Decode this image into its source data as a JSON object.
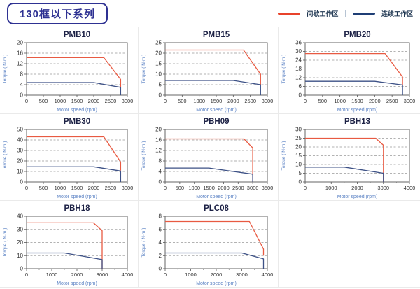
{
  "header": {
    "title": "130框以下系列",
    "legend": {
      "items": [
        {
          "label": "间歇工作区",
          "color": "#e8432b"
        },
        {
          "label": "连续工作区",
          "color": "#1f3e75"
        }
      ],
      "separator": "|",
      "position": "top-right"
    }
  },
  "style": {
    "intermittent_line_color": "#e85a42",
    "continuous_line_color": "#3d5186",
    "chart_title_color": "#1c2145",
    "axis_label_color": "#5b82c4",
    "tick_label_color": "#333333",
    "gridline_color": "#999999",
    "plot_border_color": "#666666"
  },
  "chart_data": [
    {
      "type": "line",
      "title": "PMB10",
      "xlabel": "Motor speed (rpm)",
      "ylabel": "Torque ( N·m )",
      "xlim": [
        0,
        3000
      ],
      "ylim": [
        0,
        20
      ],
      "xticks": [
        0,
        500,
        1000,
        1500,
        2000,
        2500,
        3000
      ],
      "yticks": [
        0,
        4,
        8,
        12,
        16,
        20
      ],
      "x_minor": null,
      "grid": "dashed-horizontal",
      "series": [
        {
          "name": "间歇工作区",
          "color": "#e85a42",
          "points": [
            [
              0,
              14.3
            ],
            [
              2300,
              14.3
            ],
            [
              2800,
              6
            ],
            [
              2800,
              3
            ]
          ]
        },
        {
          "name": "连续工作区",
          "color": "#3d5186",
          "points": [
            [
              0,
              4.8
            ],
            [
              2000,
              4.8
            ],
            [
              2800,
              3
            ],
            [
              2800,
              0
            ]
          ]
        }
      ]
    },
    {
      "type": "line",
      "title": "PMB15",
      "xlabel": "Motor speed (rpm)",
      "ylabel": "Torque ( N·m )",
      "xlim": [
        0,
        3000
      ],
      "ylim": [
        0,
        25
      ],
      "xticks": [
        0,
        500,
        1000,
        1500,
        2000,
        2500,
        3000
      ],
      "yticks": [
        0,
        5,
        10,
        15,
        20,
        25
      ],
      "x_minor": null,
      "grid": "dashed-horizontal",
      "series": [
        {
          "name": "间歇工作区",
          "color": "#e85a42",
          "points": [
            [
              0,
              21.5
            ],
            [
              2300,
              21.5
            ],
            [
              2800,
              10
            ],
            [
              2800,
              5
            ]
          ]
        },
        {
          "name": "连续工作区",
          "color": "#3d5186",
          "points": [
            [
              0,
              7
            ],
            [
              2000,
              7
            ],
            [
              2800,
              5
            ],
            [
              2800,
              0
            ]
          ]
        }
      ]
    },
    {
      "type": "line",
      "title": "PMB20",
      "xlabel": "Motor speed (rpm)",
      "ylabel": "Torque ( N·m )",
      "xlim": [
        0,
        3000
      ],
      "ylim": [
        0,
        36
      ],
      "xticks": [
        0,
        500,
        1000,
        1500,
        2000,
        2500,
        3000
      ],
      "yticks": [
        0,
        6,
        12,
        18,
        24,
        30,
        36
      ],
      "x_minor": null,
      "grid": "dashed-horizontal",
      "series": [
        {
          "name": "间歇工作区",
          "color": "#e85a42",
          "points": [
            [
              0,
              28.5
            ],
            [
              2300,
              28.5
            ],
            [
              2800,
              12.5
            ],
            [
              2800,
              7
            ]
          ]
        },
        {
          "name": "连续工作区",
          "color": "#3d5186",
          "points": [
            [
              0,
              9.5
            ],
            [
              2000,
              9.5
            ],
            [
              2800,
              7
            ],
            [
              2800,
              0
            ]
          ]
        }
      ]
    },
    {
      "type": "line",
      "title": "PMB30",
      "xlabel": "Motor speed (rpm)",
      "ylabel": "Torque ( N·m )",
      "xlim": [
        0,
        3000
      ],
      "ylim": [
        0,
        50
      ],
      "xticks": [
        0,
        500,
        1000,
        1500,
        2000,
        2500,
        3000
      ],
      "yticks": [
        0,
        10,
        20,
        30,
        40,
        50
      ],
      "x_minor": null,
      "grid": "dashed-horizontal",
      "series": [
        {
          "name": "间歇工作区",
          "color": "#e85a42",
          "points": [
            [
              0,
              43
            ],
            [
              2300,
              43
            ],
            [
              2800,
              19
            ],
            [
              2800,
              11
            ]
          ]
        },
        {
          "name": "连续工作区",
          "color": "#3d5186",
          "points": [
            [
              0,
              14.5
            ],
            [
              2000,
              14.5
            ],
            [
              2800,
              10.5
            ],
            [
              2800,
              0
            ]
          ]
        }
      ]
    },
    {
      "type": "line",
      "title": "PBH09",
      "xlabel": "Motor speed (rpm)",
      "ylabel": "Torque ( N·m )",
      "xlim": [
        0,
        3500
      ],
      "ylim": [
        0,
        20
      ],
      "xticks": [
        0,
        500,
        1000,
        1500,
        2000,
        2500,
        3000,
        3500
      ],
      "yticks": [
        0,
        4,
        8,
        12,
        16,
        20
      ],
      "x_minor": null,
      "grid": "dashed-horizontal",
      "series": [
        {
          "name": "间歇工作区",
          "color": "#e85a42",
          "points": [
            [
              0,
              16.4
            ],
            [
              2700,
              16.4
            ],
            [
              3000,
              13
            ],
            [
              3000,
              0
            ]
          ]
        },
        {
          "name": "连续工作区",
          "color": "#3d5186",
          "points": [
            [
              0,
              5.3
            ],
            [
              1500,
              5.3
            ],
            [
              3000,
              3
            ],
            [
              3000,
              0
            ]
          ]
        }
      ]
    },
    {
      "type": "line",
      "title": "PBH13",
      "xlabel": "Motor speed (rpm)",
      "ylabel": "Torque ( N·m )",
      "xlim": [
        0,
        4000
      ],
      "ylim": [
        0,
        30
      ],
      "xticks": [
        0,
        1000,
        2000,
        3000,
        4000
      ],
      "yticks": [
        0,
        5,
        10,
        15,
        20,
        25,
        30
      ],
      "x_minor": 500,
      "grid": "dashed-horizontal",
      "series": [
        {
          "name": "间歇工作区",
          "color": "#e85a42",
          "points": [
            [
              0,
              25
            ],
            [
              2700,
              25
            ],
            [
              3000,
              21
            ],
            [
              3000,
              0
            ]
          ]
        },
        {
          "name": "连续工作区",
          "color": "#3d5186",
          "points": [
            [
              0,
              8.5
            ],
            [
              1500,
              8.5
            ],
            [
              3000,
              5
            ],
            [
              3000,
              0
            ]
          ]
        }
      ]
    },
    {
      "type": "line",
      "title": "PBH18",
      "xlabel": "Motor speed (rpm)",
      "ylabel": "Torque ( N·m )",
      "xlim": [
        0,
        4000
      ],
      "ylim": [
        0,
        40
      ],
      "xticks": [
        0,
        1000,
        2000,
        3000,
        4000
      ],
      "yticks": [
        0,
        10,
        20,
        30,
        40
      ],
      "x_minor": 500,
      "grid": "dashed-horizontal",
      "series": [
        {
          "name": "间歇工作区",
          "color": "#e85a42",
          "points": [
            [
              0,
              35
            ],
            [
              2650,
              35
            ],
            [
              3000,
              29
            ],
            [
              3000,
              0
            ]
          ]
        },
        {
          "name": "连续工作区",
          "color": "#3d5186",
          "points": [
            [
              0,
              12
            ],
            [
              1500,
              12
            ],
            [
              3000,
              7
            ],
            [
              3000,
              0
            ]
          ]
        }
      ]
    },
    {
      "type": "line",
      "title": "PLC08",
      "xlabel": "Motor speed (rpm)",
      "ylabel": "Torque ( N·m )",
      "xlim": [
        0,
        4000
      ],
      "ylim": [
        0,
        8
      ],
      "xticks": [
        0,
        1000,
        2000,
        3000,
        4000
      ],
      "yticks": [
        0,
        2,
        4,
        6,
        8
      ],
      "x_minor": 500,
      "grid": "dashed-horizontal",
      "series": [
        {
          "name": "间歇工作区",
          "color": "#e85a42",
          "points": [
            [
              0,
              7.2
            ],
            [
              3300,
              7.2
            ],
            [
              3850,
              3
            ],
            [
              3850,
              2
            ]
          ]
        },
        {
          "name": "连续工作区",
          "color": "#3d5186",
          "points": [
            [
              0,
              2.4
            ],
            [
              3000,
              2.4
            ],
            [
              3850,
              1.5
            ],
            [
              3850,
              0
            ]
          ]
        }
      ]
    }
  ]
}
